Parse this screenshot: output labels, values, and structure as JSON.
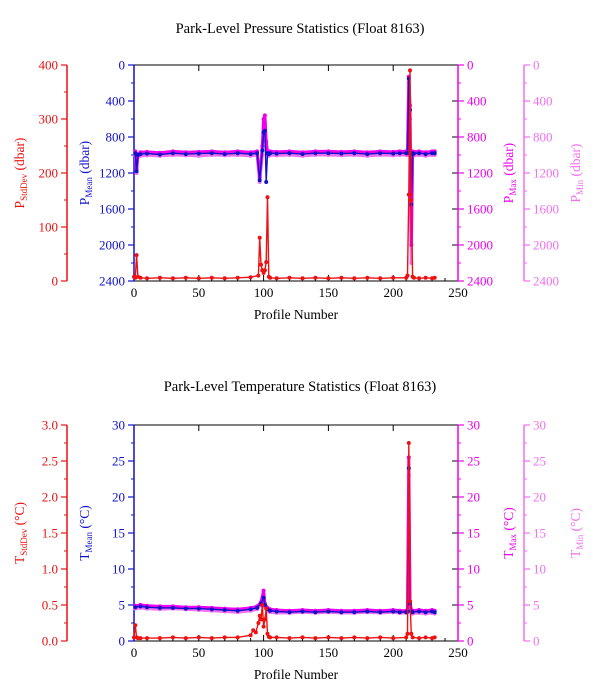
{
  "colors": {
    "stddev": "#ee1111",
    "mean": "#1111cc",
    "max": "#ee00ee",
    "min": "#f070f0",
    "axis": "#000000"
  },
  "chart_data": [
    {
      "type": "line",
      "title": "Park-Level Pressure Statistics (Float 8163)",
      "xlabel": "Profile Number",
      "xlim": [
        0,
        250
      ],
      "xticks": [
        0,
        50,
        100,
        150,
        200,
        250
      ],
      "axes": [
        {
          "key": "stddev",
          "label_main": "P",
          "label_sub": "StdDev",
          "label_unit": " (dbar)",
          "lim": [
            0,
            400
          ],
          "ticks": [
            0,
            100,
            200,
            300,
            400
          ],
          "inverted": false
        },
        {
          "key": "mean",
          "label_main": "P",
          "label_sub": "Mean",
          "label_unit": " (dbar)",
          "lim": [
            0,
            2400
          ],
          "ticks": [
            0,
            400,
            800,
            1200,
            1600,
            2000,
            2400
          ],
          "inverted": true
        },
        {
          "key": "max",
          "label_main": "P",
          "label_sub": "Max",
          "label_unit": " (dbar)",
          "lim": [
            0,
            2400
          ],
          "ticks": [
            0,
            400,
            800,
            1200,
            1600,
            2000,
            2400
          ],
          "inverted": true
        },
        {
          "key": "min",
          "label_main": "P",
          "label_sub": "Min",
          "label_unit": " (dbar)",
          "lim": [
            0,
            2400
          ],
          "ticks": [
            0,
            400,
            800,
            1200,
            1600,
            2000,
            2400
          ],
          "inverted": true
        }
      ],
      "series": [
        {
          "key": "min",
          "x": [
            1,
            2,
            3,
            5,
            10,
            20,
            30,
            40,
            50,
            60,
            70,
            80,
            90,
            95,
            97,
            99,
            100,
            101,
            102,
            103,
            104,
            105,
            110,
            120,
            130,
            140,
            150,
            160,
            170,
            180,
            190,
            200,
            205,
            210,
            211,
            212,
            213,
            214,
            215,
            216,
            220,
            225,
            230,
            232
          ],
          "y": [
            1000,
            1200,
            1020,
            1010,
            1005,
            1010,
            1000,
            1005,
            1010,
            1000,
            1005,
            1000,
            1010,
            1000,
            1300,
            1000,
            700,
            650,
            900,
            1000,
            1010,
            1000,
            1005,
            1000,
            1010,
            1000,
            1000,
            1005,
            1000,
            1010,
            1000,
            1005,
            1000,
            1000,
            1000,
            200,
            600,
            2200,
            1000,
            1005,
            1000,
            1010,
            1000,
            1000
          ]
        },
        {
          "key": "max",
          "x": [
            1,
            2,
            3,
            5,
            10,
            20,
            30,
            40,
            50,
            60,
            70,
            80,
            90,
            95,
            97,
            99,
            100,
            101,
            102,
            103,
            104,
            105,
            110,
            120,
            130,
            140,
            150,
            160,
            170,
            180,
            190,
            200,
            205,
            210,
            211,
            212,
            213,
            214,
            215,
            216,
            220,
            225,
            230,
            232
          ],
          "y": [
            960,
            1150,
            990,
            970,
            965,
            975,
            960,
            970,
            965,
            960,
            970,
            960,
            970,
            960,
            1250,
            900,
            600,
            560,
            850,
            960,
            970,
            960,
            965,
            960,
            970,
            960,
            960,
            965,
            960,
            970,
            960,
            965,
            960,
            960,
            960,
            130,
            450,
            2000,
            960,
            965,
            960,
            970,
            960,
            960
          ]
        },
        {
          "key": "mean",
          "x": [
            1,
            2,
            3,
            5,
            10,
            20,
            30,
            40,
            50,
            60,
            70,
            80,
            90,
            95,
            97,
            99,
            100,
            101,
            102,
            103,
            104,
            105,
            110,
            120,
            130,
            140,
            150,
            160,
            170,
            180,
            190,
            200,
            205,
            210,
            211,
            212,
            213,
            214,
            215,
            216,
            220,
            225,
            230,
            232
          ],
          "y": [
            980,
            1180,
            1000,
            990,
            985,
            995,
            980,
            990,
            985,
            980,
            990,
            980,
            990,
            980,
            1280,
            950,
            750,
            730,
            1300,
            980,
            990,
            980,
            985,
            980,
            990,
            980,
            980,
            985,
            980,
            990,
            980,
            985,
            980,
            980,
            980,
            150,
            500,
            1550,
            980,
            985,
            980,
            990,
            980,
            980
          ]
        },
        {
          "key": "stddev",
          "x": [
            0,
            1,
            2,
            3,
            5,
            10,
            20,
            30,
            40,
            50,
            60,
            70,
            80,
            90,
            96,
            97,
            98,
            99,
            100,
            101,
            102,
            103,
            104,
            105,
            110,
            120,
            130,
            140,
            150,
            160,
            170,
            180,
            190,
            200,
            210,
            211,
            212,
            213,
            214,
            215,
            216,
            220,
            225,
            230,
            232
          ],
          "y": [
            8,
            6,
            48,
            8,
            6,
            5,
            6,
            5,
            6,
            5,
            6,
            5,
            6,
            7,
            10,
            80,
            30,
            20,
            15,
            20,
            35,
            155,
            8,
            6,
            5,
            6,
            5,
            6,
            5,
            6,
            5,
            6,
            5,
            6,
            6,
            10,
            160,
            390,
            150,
            8,
            6,
            5,
            6,
            5,
            6
          ]
        }
      ]
    },
    {
      "type": "line",
      "title": "Park-Level Temperature Statistics (Float 8163)",
      "xlabel": "Profile Number",
      "xlim": [
        0,
        250
      ],
      "xticks": [
        0,
        50,
        100,
        150,
        200,
        250
      ],
      "axes": [
        {
          "key": "stddev",
          "label_main": "T",
          "label_sub": "StdDev",
          "label_unit": " (°C)",
          "lim": [
            0,
            3
          ],
          "ticks": [
            0.0,
            0.5,
            1.0,
            1.5,
            2.0,
            2.5,
            3.0
          ],
          "tick_labels": [
            "0.0",
            "0.5",
            "1.0",
            "1.5",
            "2.0",
            "2.5",
            "3.0"
          ],
          "inverted": false
        },
        {
          "key": "mean",
          "label_main": "T",
          "label_sub": "Mean",
          "label_unit": " (°C)",
          "lim": [
            0,
            30
          ],
          "ticks": [
            0,
            5,
            10,
            15,
            20,
            25,
            30
          ],
          "inverted": false
        },
        {
          "key": "max",
          "label_main": "T",
          "label_sub": "Max",
          "label_unit": " (°C)",
          "lim": [
            0,
            30
          ],
          "ticks": [
            0,
            5,
            10,
            15,
            20,
            25,
            30
          ],
          "inverted": false
        },
        {
          "key": "min",
          "label_main": "T",
          "label_sub": "Min",
          "label_unit": " (°C)",
          "lim": [
            0,
            30
          ],
          "ticks": [
            0,
            5,
            10,
            15,
            20,
            25,
            30
          ],
          "inverted": false
        }
      ],
      "series": [
        {
          "key": "min",
          "x": [
            1,
            5,
            10,
            20,
            30,
            40,
            50,
            60,
            70,
            80,
            90,
            95,
            98,
            100,
            101,
            103,
            105,
            110,
            120,
            130,
            140,
            150,
            160,
            170,
            180,
            190,
            200,
            205,
            210,
            211,
            212,
            213,
            214,
            215,
            220,
            225,
            230,
            232
          ],
          "y": [
            4.5,
            4.6,
            4.5,
            4.4,
            4.5,
            4.4,
            4.3,
            4.2,
            4.1,
            4.0,
            4.2,
            4.4,
            5.0,
            6.5,
            4.8,
            4.2,
            4.0,
            3.9,
            3.9,
            4.0,
            3.9,
            4.0,
            3.9,
            3.9,
            4.0,
            3.9,
            4.0,
            3.9,
            3.9,
            4.0,
            23,
            5.0,
            3.9,
            3.8,
            3.9,
            3.8,
            3.9,
            3.8
          ]
        },
        {
          "key": "max",
          "x": [
            1,
            5,
            10,
            20,
            30,
            40,
            50,
            60,
            70,
            80,
            90,
            95,
            98,
            100,
            101,
            103,
            105,
            110,
            120,
            130,
            140,
            150,
            160,
            170,
            180,
            190,
            200,
            205,
            210,
            211,
            212,
            213,
            214,
            215,
            220,
            225,
            230,
            232
          ],
          "y": [
            4.9,
            5.0,
            4.9,
            4.8,
            4.8,
            4.7,
            4.7,
            4.6,
            4.5,
            4.4,
            4.6,
            4.8,
            5.4,
            7.0,
            5.2,
            4.6,
            4.4,
            4.3,
            4.2,
            4.3,
            4.2,
            4.3,
            4.2,
            4.2,
            4.3,
            4.2,
            4.3,
            4.2,
            4.2,
            4.3,
            25.5,
            5.5,
            4.3,
            4.2,
            4.3,
            4.2,
            4.3,
            4.2
          ]
        },
        {
          "key": "mean",
          "x": [
            1,
            5,
            10,
            20,
            30,
            40,
            50,
            60,
            70,
            80,
            90,
            95,
            98,
            100,
            101,
            103,
            105,
            110,
            120,
            130,
            140,
            150,
            160,
            170,
            180,
            190,
            200,
            205,
            210,
            211,
            212,
            213,
            214,
            215,
            220,
            225,
            230,
            232
          ],
          "y": [
            4.7,
            4.8,
            4.7,
            4.6,
            4.6,
            4.5,
            4.5,
            4.4,
            4.3,
            4.2,
            4.4,
            4.6,
            5.2,
            6.0,
            5.0,
            4.4,
            4.2,
            4.1,
            4.0,
            4.1,
            4.0,
            4.1,
            4.0,
            4.0,
            4.1,
            4.0,
            4.1,
            4.0,
            4.0,
            4.1,
            24.0,
            5.2,
            4.1,
            4.0,
            4.1,
            4.0,
            4.1,
            4.0
          ]
        },
        {
          "key": "stddev",
          "x": [
            0,
            1,
            2,
            3,
            5,
            10,
            20,
            30,
            40,
            50,
            60,
            70,
            80,
            90,
            92,
            94,
            96,
            97,
            98,
            99,
            100,
            101,
            102,
            103,
            104,
            105,
            110,
            120,
            130,
            140,
            150,
            160,
            170,
            180,
            190,
            200,
            210,
            211,
            212,
            213,
            214,
            215,
            220,
            225,
            230,
            232
          ],
          "y": [
            0.05,
            0.22,
            0.05,
            0.04,
            0.04,
            0.04,
            0.04,
            0.05,
            0.04,
            0.05,
            0.04,
            0.05,
            0.05,
            0.08,
            0.15,
            0.12,
            0.25,
            0.35,
            0.3,
            0.5,
            0.2,
            0.3,
            0.45,
            0.1,
            0.06,
            0.05,
            0.05,
            0.04,
            0.05,
            0.04,
            0.05,
            0.04,
            0.05,
            0.04,
            0.05,
            0.04,
            0.05,
            0.1,
            2.75,
            0.55,
            0.1,
            0.05,
            0.04,
            0.05,
            0.04,
            0.05
          ]
        }
      ]
    }
  ]
}
